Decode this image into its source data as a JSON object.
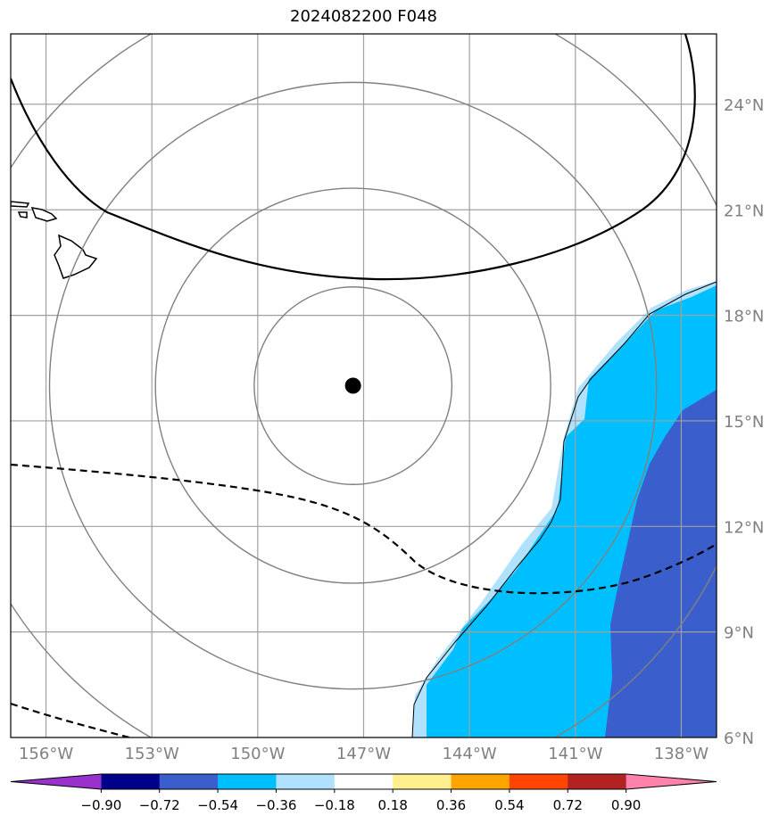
{
  "title": "2024082200 F048",
  "map": {
    "lon_range": [
      -157,
      -137
    ],
    "lat_range": [
      6,
      26
    ],
    "lon_ticks": [
      -156,
      -153,
      -150,
      -147,
      -144,
      -141,
      -138
    ],
    "lat_ticks": [
      6,
      9,
      12,
      15,
      18,
      21,
      24
    ],
    "lon_tick_labels": [
      "156°W",
      "153°W",
      "150°W",
      "147°W",
      "144°W",
      "141°W",
      "138°W"
    ],
    "lat_tick_labels": [
      "6°N",
      "9°N",
      "12°N",
      "15°N",
      "18°N",
      "21°N",
      "24°N"
    ],
    "storm_center": {
      "lon": -147.3,
      "lat": 16.0
    },
    "range_rings_deg": [
      2.8,
      5.6,
      8.6,
      11.5
    ]
  },
  "colorbar": {
    "levels": [
      "−0.90",
      "−0.72",
      "−0.54",
      "−0.36",
      "−0.18",
      "0.18",
      "0.36",
      "0.54",
      "0.72",
      "0.90"
    ],
    "colors": [
      "#9932cc",
      "#00008b",
      "#3a5fcd",
      "#00bfff",
      "#b0e2ff",
      "#ffffff",
      "#fff08f",
      "#ffa500",
      "#ff4500",
      "#b22222",
      "#ff82ab"
    ]
  },
  "colors": {
    "field_light": "#b0e2ff",
    "field_mid": "#00bfff",
    "field_dark": "#3a5fcd",
    "grid": "#a0a0a0",
    "rings": "#808080",
    "tick_label": "#808080"
  }
}
